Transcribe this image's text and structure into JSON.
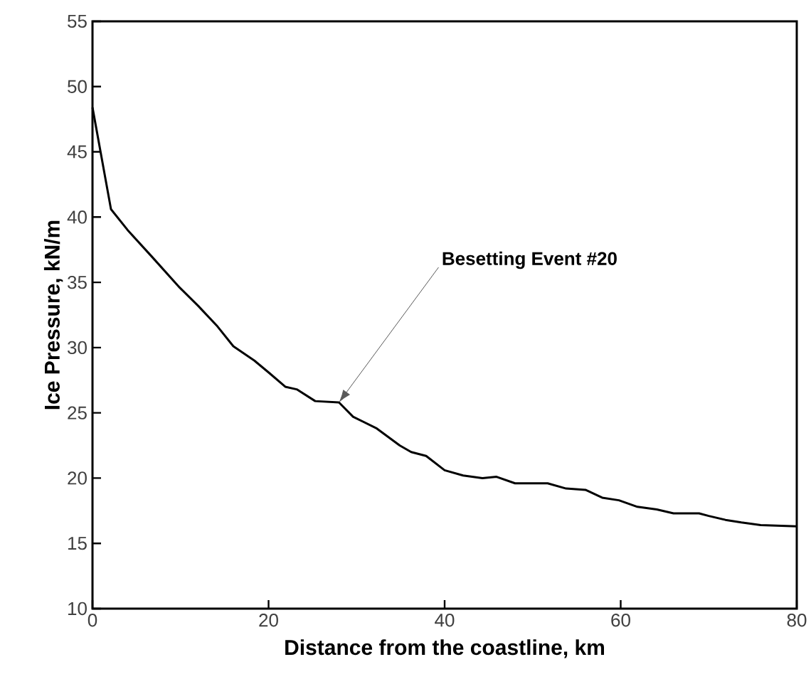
{
  "chart_data": {
    "type": "line",
    "xlabel": "Distance from the coastline, km",
    "ylabel": "Ice Pressure, kN/m",
    "x": [
      0,
      2.1,
      4,
      6.7,
      9.9,
      12,
      14.1,
      16,
      18.4,
      20,
      21.9,
      23.2,
      25.3,
      28,
      29.6,
      32.3,
      34.9,
      36.2,
      37.9,
      40,
      42.1,
      44.3,
      45.9,
      48,
      51.7,
      53.8,
      56,
      57.9,
      59.8,
      61.9,
      64.1,
      66,
      68.9,
      70,
      71.9,
      73.7,
      75.9,
      80
    ],
    "series": [
      {
        "color": "#000000",
        "values": [
          48.4,
          40.6,
          39,
          37,
          34.6,
          33.2,
          31.7,
          30.1,
          29,
          28.1,
          27,
          26.8,
          25.9,
          25.8,
          24.7,
          23.8,
          22.5,
          22,
          21.7,
          20.6,
          20.2,
          20,
          20.1,
          19.6,
          19.6,
          19.2,
          19.1,
          18.5,
          18.3,
          17.8,
          17.6,
          17.3,
          17.3,
          17.1,
          16.8,
          16.6,
          16.4,
          16.3
        ]
      }
    ],
    "xlim": [
      0,
      80
    ],
    "ylim": [
      10,
      55
    ],
    "xticks": [
      0,
      20,
      40,
      60,
      80
    ],
    "yticks": [
      10,
      15,
      20,
      25,
      30,
      35,
      40,
      45,
      50,
      55
    ],
    "annotations": [
      {
        "text": "Besetting Event #20",
        "x": 28,
        "y": 25.8
      }
    ],
    "grid": false,
    "marker": "none",
    "line_style": "solid"
  }
}
